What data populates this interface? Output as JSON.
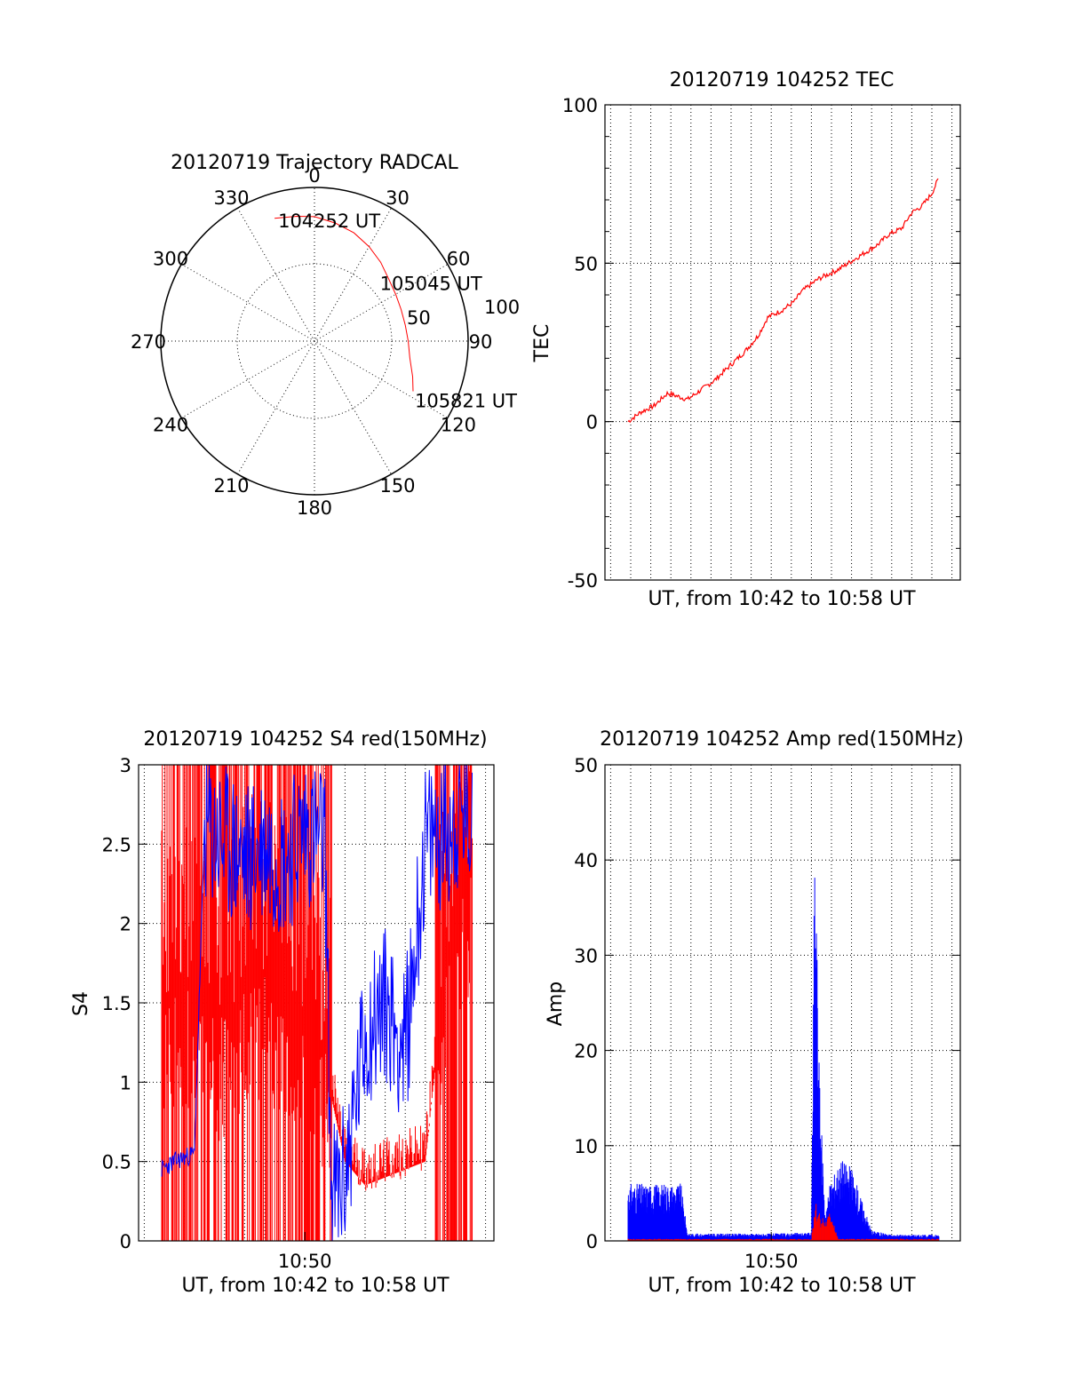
{
  "colors": {
    "red": "#ff0000",
    "blue": "#0000ff"
  },
  "chart_data": [
    {
      "id": "trajectory",
      "type": "polar",
      "title": "20120719 Trajectory RADCAL",
      "angle_labels": [
        "0",
        "30",
        "60",
        "90",
        "120",
        "150",
        "180",
        "210",
        "240",
        "270",
        "300",
        "330"
      ],
      "radius_labels": [
        "50",
        "100"
      ],
      "rlim": [
        0,
        100
      ],
      "grid": true,
      "series": [
        {
          "color": "red",
          "points": [
            {
              "az": 342,
              "el_offset": 84
            },
            {
              "az": 352,
              "el_offset": 82
            },
            {
              "az": 0,
              "el_offset": 81
            },
            {
              "az": 10,
              "el_offset": 78
            },
            {
              "az": 20,
              "el_offset": 75
            },
            {
              "az": 30,
              "el_offset": 71
            },
            {
              "az": 40,
              "el_offset": 67
            },
            {
              "az": 50,
              "el_offset": 63
            },
            {
              "az": 60,
              "el_offset": 61
            },
            {
              "az": 70,
              "el_offset": 60
            },
            {
              "az": 80,
              "el_offset": 60
            },
            {
              "az": 90,
              "el_offset": 61
            },
            {
              "az": 100,
              "el_offset": 63
            },
            {
              "az": 110,
              "el_offset": 68
            },
            {
              "az": 117,
              "el_offset": 72
            }
          ]
        }
      ],
      "annotations": [
        {
          "text": "104252 UT",
          "az": 342,
          "el_offset": 84
        },
        {
          "text": "105045 UT",
          "az": 62,
          "el_offset": 60
        },
        {
          "text": "105821 UT",
          "az": 117,
          "el_offset": 72
        }
      ]
    },
    {
      "id": "tec",
      "type": "line",
      "title": "20120719 104252 TEC",
      "xlabel": "UT, from 10:42 to 10:58 UT",
      "ylabel": "TEC",
      "xlim": [
        "10:41:43",
        "10:59:25"
      ],
      "ylim": [
        -50,
        100
      ],
      "yticks": [
        "-50",
        "0",
        "50",
        "100"
      ],
      "grid": true,
      "series": [
        {
          "color": "red",
          "x": [
            "10:42:52",
            "10:43:30",
            "10:44:10",
            "10:44:50",
            "10:45:20",
            "10:45:50",
            "10:46:30",
            "10:47:10",
            "10:47:40",
            "10:48:10",
            "10:48:40",
            "10:49:20",
            "10:49:50",
            "10:50:30",
            "10:51:10",
            "10:51:30",
            "10:52:20",
            "10:53:20",
            "10:54:20",
            "10:55:20",
            "10:55:50",
            "10:56:30",
            "10:57:00",
            "10:57:30",
            "10:58:00",
            "10:58:21"
          ],
          "values": [
            0,
            3,
            5,
            9,
            8,
            7,
            10,
            13,
            16,
            19,
            22,
            27,
            33,
            35,
            38,
            41,
            45,
            48,
            52,
            56,
            59,
            61,
            66,
            68,
            72,
            77
          ]
        }
      ]
    },
    {
      "id": "s4",
      "type": "line",
      "title": "20120719 104252 S4 red(150MHz)",
      "xlabel": "UT, from 10:42 to 10:58 UT",
      "ylabel": "S4",
      "xlim": [
        "10:41:43",
        "10:59:25"
      ],
      "ylim": [
        0,
        3
      ],
      "yticks": [
        "0",
        "0.5",
        "1",
        "1.5",
        "2",
        "2.5",
        "3"
      ],
      "xticks": [
        "10:50"
      ],
      "grid": true,
      "series": [
        {
          "color": "red",
          "name": "",
          "x": [
            "10:42:52",
            "10:44:00",
            "10:45:00",
            "10:46:00",
            "10:47:00",
            "10:48:00",
            "10:49:00",
            "10:50:00",
            "10:51:00",
            "10:52:00",
            "10:53:00",
            "10:54:00",
            "10:55:00",
            "10:56:00",
            "10:57:00",
            "10:58:21"
          ],
          "values": [
            1.5,
            1.6,
            1.5,
            1.4,
            1.6,
            1.7,
            1.5,
            1.4,
            1.2,
            0.6,
            0.45,
            0.5,
            0.55,
            0.6,
            1.8,
            2.4
          ]
        },
        {
          "color": "blue",
          "name": "",
          "x": [
            "10:42:52",
            "10:43:30",
            "10:44:30",
            "10:45:00",
            "10:46:00",
            "10:47:00",
            "10:48:00",
            "10:49:00",
            "10:50:00",
            "10:51:00",
            "10:51:20",
            "10:52:00",
            "10:53:00",
            "10:54:00",
            "10:55:00",
            "10:56:00",
            "10:57:00",
            "10:58:21"
          ],
          "values": [
            0.45,
            0.5,
            0.55,
            2.6,
            2.5,
            2.4,
            2.5,
            2.4,
            2.6,
            2.5,
            0.25,
            0.4,
            1.3,
            1.5,
            1.2,
            2.5,
            2.6,
            2.7
          ]
        }
      ]
    },
    {
      "id": "amp",
      "type": "line",
      "title": "20120719 104252 Amp red(150MHz)",
      "xlabel": "UT, from 10:42 to 10:58 UT",
      "ylabel": "Amp",
      "xlim": [
        "10:41:43",
        "10:59:25"
      ],
      "ylim": [
        0,
        50
      ],
      "yticks": [
        "0",
        "10",
        "20",
        "30",
        "40",
        "50"
      ],
      "xticks": [
        "10:50"
      ],
      "grid": true,
      "series": [
        {
          "color": "blue",
          "name": "",
          "x": [
            "10:42:52",
            "10:45:30",
            "10:45:50",
            "10:50:00",
            "10:52:00",
            "10:52:10",
            "10:52:25",
            "10:52:40",
            "10:53:00",
            "10:53:30",
            "10:54:00",
            "10:55:00",
            "10:56:00",
            "10:58:21"
          ],
          "values": [
            5.5,
            5.5,
            0.7,
            0.7,
            0.8,
            40,
            15,
            3,
            6,
            8,
            7,
            1,
            0.6,
            0.6
          ]
        },
        {
          "color": "red",
          "name": "",
          "x": [
            "10:42:52",
            "10:52:00",
            "10:52:10",
            "10:52:40",
            "10:53:00",
            "10:53:20",
            "10:58:21"
          ],
          "values": [
            0.2,
            0.2,
            4,
            2,
            3,
            0.2,
            0.2
          ]
        }
      ]
    }
  ]
}
